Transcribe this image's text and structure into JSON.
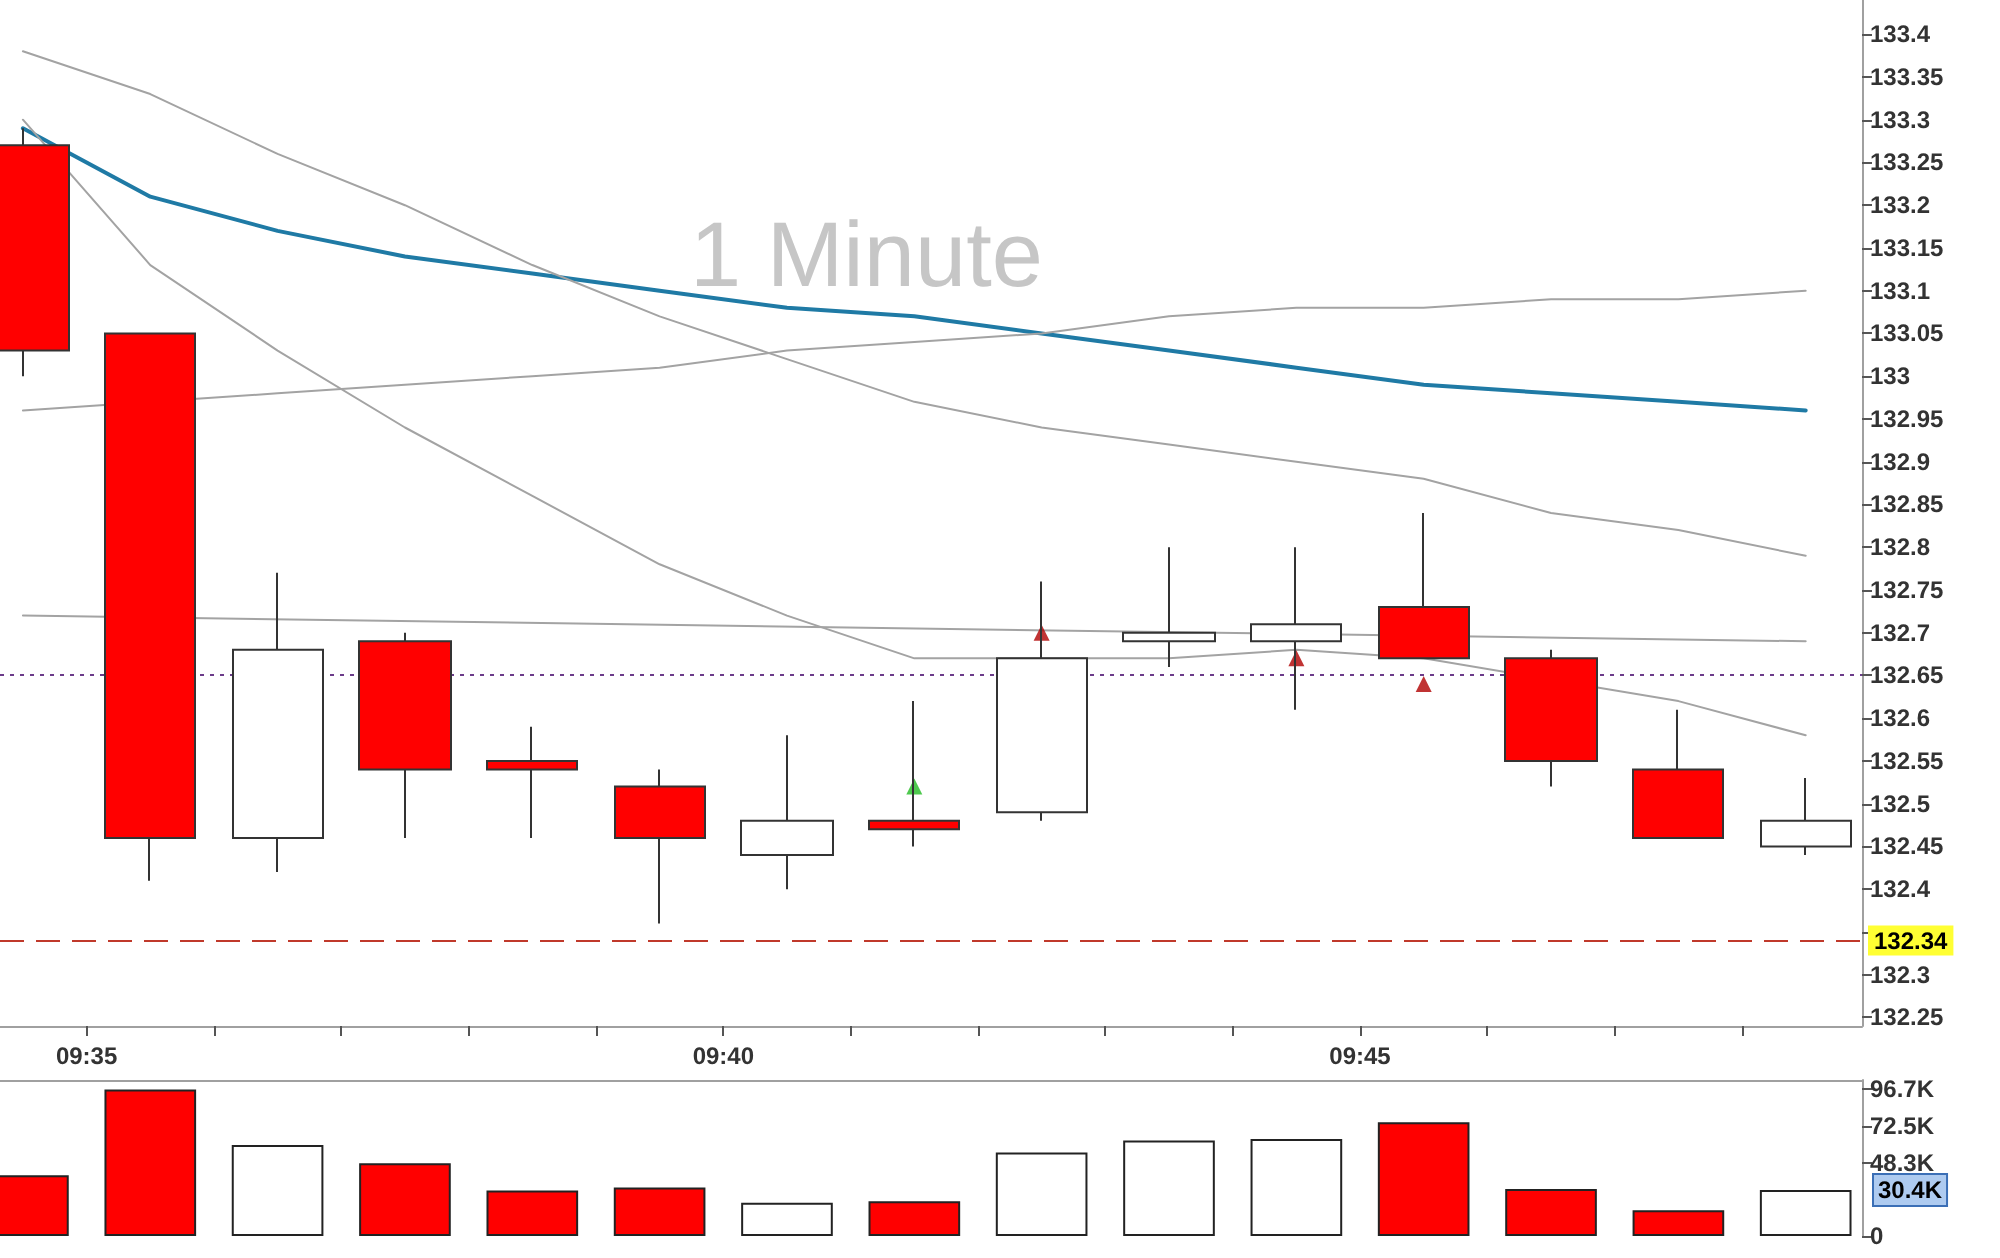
{
  "chart_data": [
    {
      "type": "candlestick",
      "title": "1 Minute",
      "x": [
        9.575,
        9.59167,
        9.60833,
        9.625,
        9.64167,
        9.65833,
        9.675,
        9.69167,
        9.70833,
        9.725,
        9.74167,
        9.75833,
        9.775,
        9.79167,
        9.80833
      ],
      "ohlc": [
        [
          133.27,
          133.29,
          133.0,
          133.03
        ],
        [
          133.05,
          133.05,
          132.41,
          132.46
        ],
        [
          132.46,
          132.77,
          132.42,
          132.68
        ],
        [
          132.69,
          132.7,
          132.46,
          132.54
        ],
        [
          132.55,
          132.59,
          132.46,
          132.54
        ],
        [
          132.52,
          132.54,
          132.36,
          132.46
        ],
        [
          132.44,
          132.58,
          132.4,
          132.48
        ],
        [
          132.48,
          132.62,
          132.45,
          132.47
        ],
        [
          132.49,
          132.76,
          132.48,
          132.67
        ],
        [
          132.69,
          132.8,
          132.66,
          132.7
        ],
        [
          132.69,
          132.8,
          132.61,
          132.71
        ],
        [
          132.73,
          132.84,
          132.67,
          132.67
        ],
        [
          132.67,
          132.68,
          132.52,
          132.55
        ],
        [
          132.54,
          132.61,
          132.46,
          132.46
        ],
        [
          132.45,
          132.53,
          132.44,
          132.48
        ]
      ],
      "colors": [
        "#ff0000",
        "#ff0000",
        "#ffffff",
        "#ff0000",
        "#ff0000",
        "#ff0000",
        "#ffffff",
        "#ff0000",
        "#ffffff",
        "#ffffff",
        "#ffffff",
        "#ff0000",
        "#ff0000",
        "#ff0000",
        "#ffffff"
      ],
      "series": [
        {
          "type": "line",
          "color": "#1f7aa5",
          "values": [
            133.29,
            133.21,
            133.17,
            133.14,
            133.12,
            133.1,
            133.08,
            133.07,
            133.05,
            133.03,
            133.01,
            132.99,
            132.98,
            132.97,
            132.96
          ]
        },
        {
          "type": "line",
          "color": "#a3a3a3",
          "values": [
            133.38,
            133.33,
            133.26,
            133.2,
            133.13,
            133.07,
            133.02,
            132.97,
            132.94,
            132.92,
            132.9,
            132.88,
            132.84,
            132.82,
            132.79
          ]
        },
        {
          "type": "line",
          "color": "#a3a3a3",
          "values": [
            133.3,
            133.13,
            133.03,
            132.94,
            132.86,
            132.78,
            132.72,
            132.67,
            132.67,
            132.67,
            132.68,
            132.67,
            null,
            132.62,
            132.58
          ]
        },
        {
          "type": "line",
          "color": "#a3a3a3",
          "values": [
            132.96,
            null,
            132.98,
            132.99,
            133.0,
            133.01,
            133.03,
            133.04,
            133.05,
            133.07,
            133.08,
            133.08,
            133.09,
            133.09,
            133.1
          ]
        },
        {
          "type": "line",
          "color": "#a3a3a3",
          "x": [
            9.575,
            9.80833
          ],
          "values": [
            132.72,
            132.69
          ]
        },
        {
          "type": "scatter",
          "color": "#22bb22",
          "marker": "triangle",
          "x": [
            9.69167
          ],
          "values": [
            132.52
          ]
        },
        {
          "type": "scatter",
          "color": "#b00000",
          "marker": "triangle",
          "x": [
            9.70833,
            9.74167,
            9.75833
          ],
          "values": [
            132.7,
            132.67,
            132.64
          ]
        }
      ],
      "xlim": [
        9.572,
        9.8157
      ],
      "xticks": [
        {
          "value": 9.58333,
          "label": "09:35"
        },
        {
          "value": 9.6,
          "label": null
        },
        {
          "value": 9.61667,
          "label": null
        },
        {
          "value": 9.63333,
          "label": null
        },
        {
          "value": 9.65,
          "label": null
        },
        {
          "value": 9.66667,
          "label": "09:40"
        },
        {
          "value": 9.68333,
          "label": null
        },
        {
          "value": 9.7,
          "label": null
        },
        {
          "value": 9.71667,
          "label": null
        },
        {
          "value": 9.73333,
          "label": null
        },
        {
          "value": 9.75,
          "label": "09:45"
        },
        {
          "value": 9.76667,
          "label": null
        },
        {
          "value": 9.78333,
          "label": null
        },
        {
          "value": 9.8,
          "label": null
        }
      ],
      "ylim": [
        132.24,
        133.44
      ],
      "yticks": [
        132.25,
        132.3,
        {
          "value": 132.35,
          "label": null
        },
        132.4,
        132.45,
        132.5,
        132.55,
        132.6,
        132.65,
        132.7,
        132.75,
        132.8,
        132.85,
        132.9,
        132.95,
        133,
        133.05,
        133.1,
        133.15,
        133.2,
        133.25,
        133.3,
        133.35,
        133.4
      ],
      "ref_lines": [
        {
          "axis": "y",
          "value": 132.65,
          "color": "#6b3b8a",
          "line_style": "dotted"
        },
        {
          "axis": "y",
          "value": 132.34,
          "label": "132.34",
          "color": "#c0392b",
          "line_style": "dashed"
        }
      ]
    },
    {
      "type": "bar",
      "x": [
        9.575,
        9.59167,
        9.60833,
        9.625,
        9.64167,
        9.65833,
        9.675,
        9.69167,
        9.70833,
        9.725,
        9.74167,
        9.75833,
        9.775,
        9.79167,
        9.80833
      ],
      "values": [
        40000,
        96700,
        60000,
        48000,
        30000,
        32000,
        22000,
        23000,
        55000,
        63000,
        64000,
        75000,
        31000,
        17000,
        30400
      ],
      "colors": [
        "#ff0000",
        "#ff0000",
        "#ffffff",
        "#ff0000",
        "#ff0000",
        "#ff0000",
        "#ffffff",
        "#ff0000",
        "#ffffff",
        "#ffffff",
        "#ffffff",
        "#ff0000",
        "#ff0000",
        "#ff0000",
        "#ffffff"
      ],
      "xlim": [
        9.572,
        9.8157
      ],
      "ylim": [
        0,
        102900
      ],
      "yticks": [
        0,
        {
          "value": 48300,
          "label": "48.3K"
        },
        {
          "value": 72500,
          "label": "72.5K"
        },
        {
          "value": 96700,
          "label": "96.7K"
        }
      ],
      "tick_labels": "y",
      "annotations": [
        "30.4K"
      ]
    }
  ]
}
